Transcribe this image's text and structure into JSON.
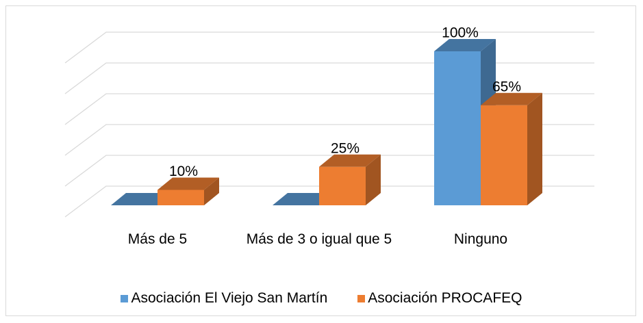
{
  "chart_data": {
    "type": "bar3d",
    "categories": [
      "Más de 5",
      "Más de 3 o igual que 5",
      "Ninguno"
    ],
    "series": [
      {
        "name": "Asociación El Viejo San Martín",
        "color": "#5b9bd5",
        "values": [
          0,
          0,
          100
        ],
        "value_labels": [
          null,
          null,
          "100%"
        ]
      },
      {
        "name": "Asociación PROCAFEQ",
        "color": "#ed7d31",
        "values": [
          10,
          25,
          65
        ],
        "value_labels": [
          "10%",
          "25%",
          "65%"
        ]
      }
    ],
    "ylim": [
      0,
      100
    ],
    "yticks": [
      0,
      20,
      40,
      60,
      80,
      100
    ],
    "grid": true,
    "legend": "bottom"
  }
}
